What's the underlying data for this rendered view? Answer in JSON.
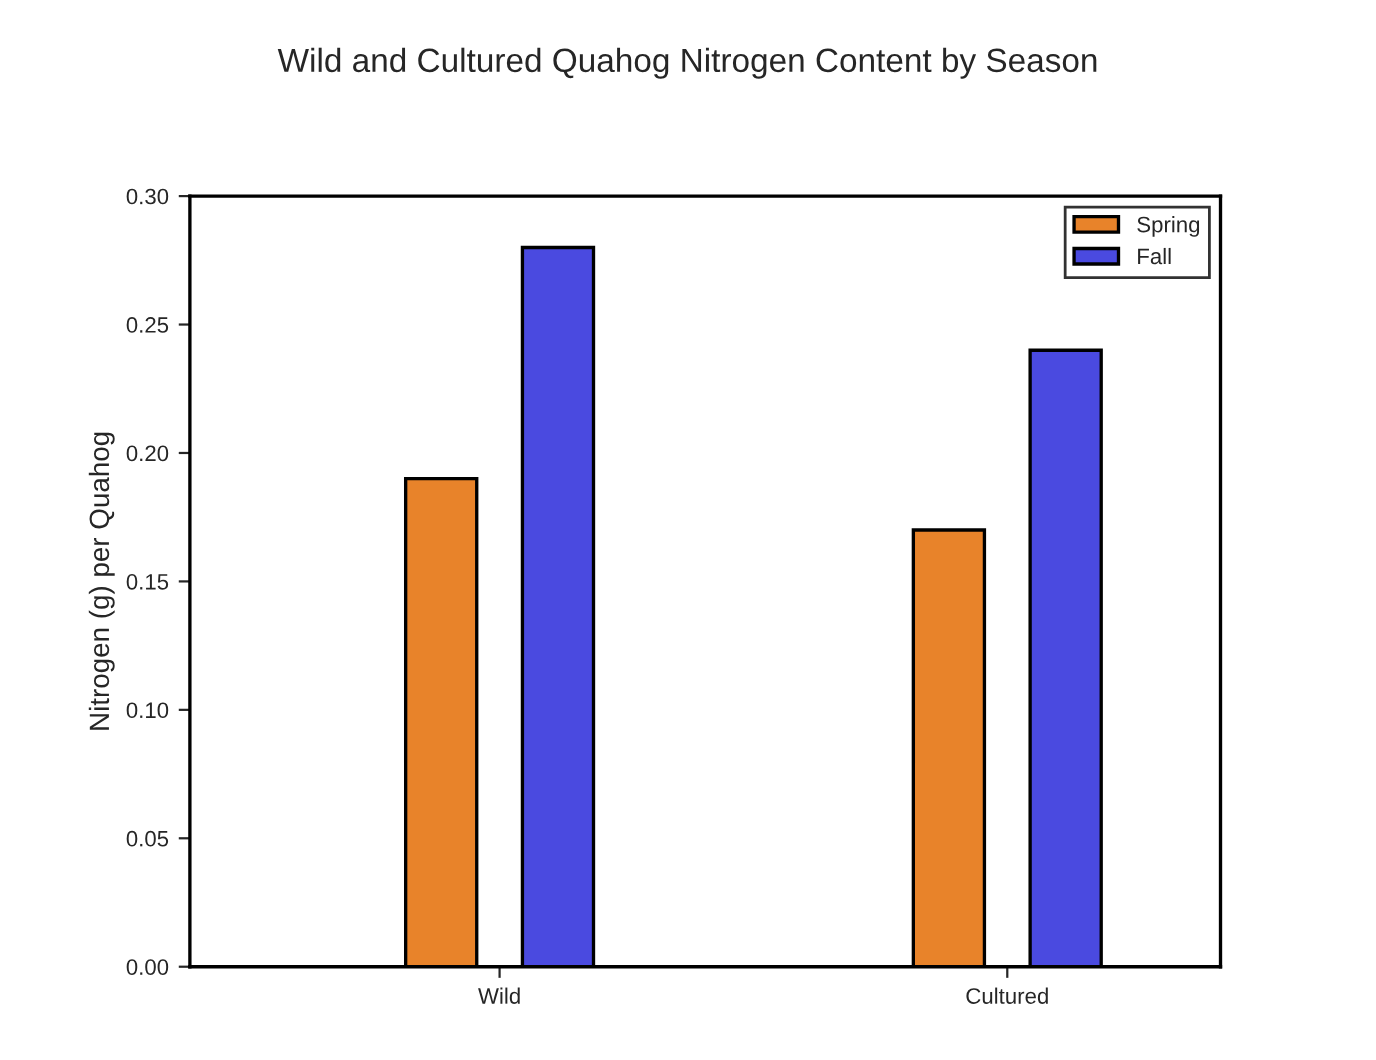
{
  "chart_data": {
    "type": "bar",
    "title": "Wild and Cultured Quahog Nitrogen Content by Season",
    "ylabel": "Nitrogen (g) per Quahog",
    "categories": [
      "Wild",
      "Cultured"
    ],
    "series": [
      {
        "name": "Spring",
        "color": "#e8832a",
        "values": [
          0.19,
          0.17
        ]
      },
      {
        "name": "Fall",
        "color": "#4a4ae0",
        "values": [
          0.28,
          0.24
        ]
      }
    ],
    "ylim": [
      0,
      0.3
    ],
    "yticks": [
      {
        "value": 0,
        "label": "0.00"
      },
      {
        "value": 0.05,
        "label": "0.05"
      },
      {
        "value": 0.1,
        "label": "0.10"
      },
      {
        "value": 0.15,
        "label": "0.15"
      },
      {
        "value": 0.2,
        "label": "0.20"
      },
      {
        "value": 0.25,
        "label": "0.25"
      },
      {
        "value": 0.3,
        "label": "0.30"
      }
    ],
    "legend": "top right",
    "grid": false
  }
}
